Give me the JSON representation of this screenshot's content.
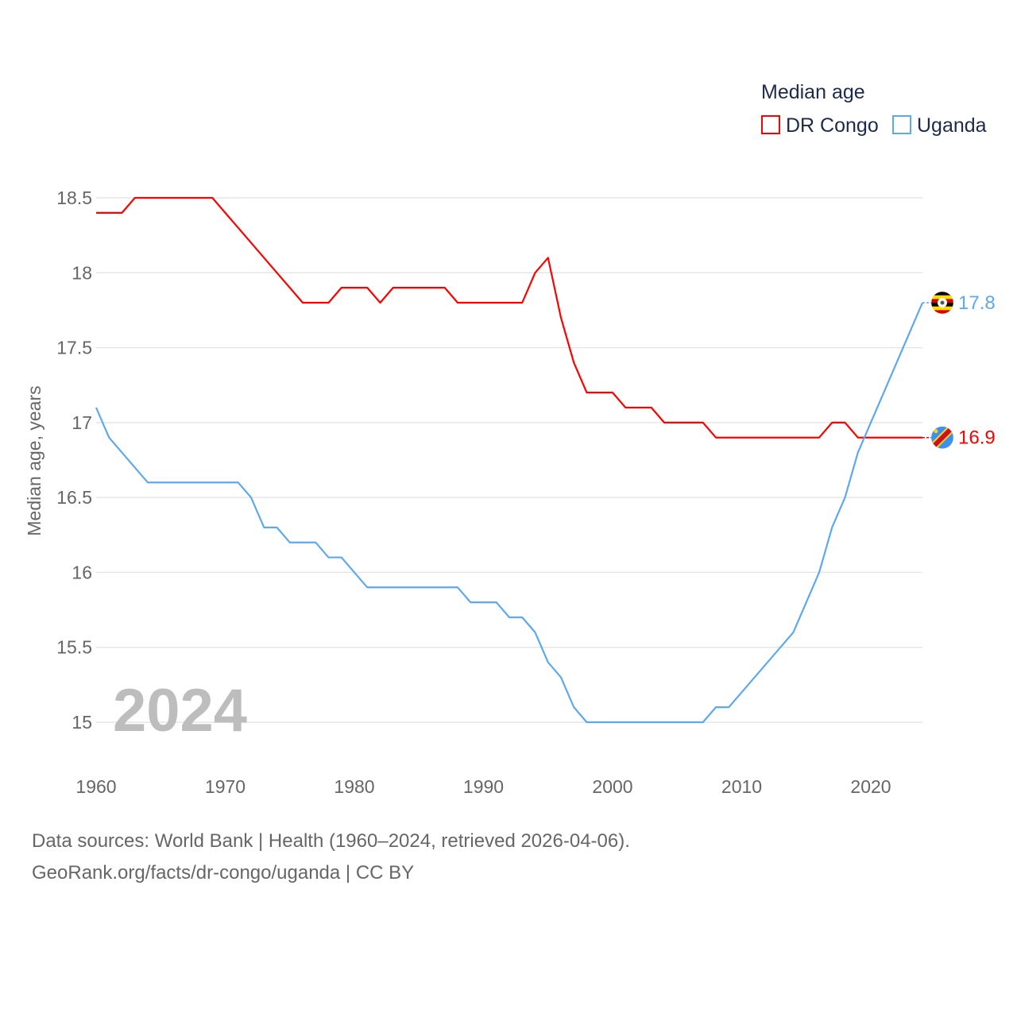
{
  "chart_data": {
    "type": "line",
    "title": "",
    "legend_title": "Median age",
    "legend_position": "top-right",
    "xlabel": "",
    "ylabel": "Median age, years",
    "xlim": [
      1960,
      2024
    ],
    "ylim": [
      15,
      18.5
    ],
    "grid": true,
    "x_ticks": [
      "1960",
      "1970",
      "1980",
      "1990",
      "2000",
      "2010",
      "2020"
    ],
    "y_ticks": [
      "15",
      "15.5",
      "16",
      "16.5",
      "17",
      "17.5",
      "18",
      "18.5"
    ],
    "year_label": "2024",
    "x": [
      1960,
      1961,
      1962,
      1963,
      1964,
      1965,
      1966,
      1967,
      1968,
      1969,
      1970,
      1971,
      1972,
      1973,
      1974,
      1975,
      1976,
      1977,
      1978,
      1979,
      1980,
      1981,
      1982,
      1983,
      1984,
      1985,
      1986,
      1987,
      1988,
      1989,
      1990,
      1991,
      1992,
      1993,
      1994,
      1995,
      1996,
      1997,
      1998,
      1999,
      2000,
      2001,
      2002,
      2003,
      2004,
      2005,
      2006,
      2007,
      2008,
      2009,
      2010,
      2011,
      2012,
      2013,
      2014,
      2015,
      2016,
      2017,
      2018,
      2019,
      2020,
      2021,
      2022,
      2023,
      2024
    ],
    "series": [
      {
        "name": "DR Congo",
        "color": "#ff0000",
        "end_label": "16.9",
        "values": [
          18.4,
          18.4,
          18.4,
          18.5,
          18.5,
          18.5,
          18.5,
          18.5,
          18.5,
          18.5,
          18.4,
          18.3,
          18.2,
          18.1,
          18.0,
          17.9,
          17.8,
          17.8,
          17.8,
          17.9,
          17.9,
          17.9,
          17.8,
          17.9,
          17.9,
          17.9,
          17.9,
          17.9,
          17.8,
          17.8,
          17.8,
          17.8,
          17.8,
          17.8,
          18.0,
          18.1,
          17.7,
          17.4,
          17.2,
          17.2,
          17.2,
          17.1,
          17.1,
          17.1,
          17.0,
          17.0,
          17.0,
          17.0,
          16.9,
          16.9,
          16.9,
          16.9,
          16.9,
          16.9,
          16.9,
          16.9,
          16.9,
          17.0,
          17.0,
          16.9,
          16.9,
          16.9,
          16.9,
          16.9,
          16.9
        ]
      },
      {
        "name": "Uganda",
        "color": "#5ea8ef",
        "end_label": "17.8",
        "values": [
          17.1,
          16.9,
          16.8,
          16.7,
          16.6,
          16.6,
          16.6,
          16.6,
          16.6,
          16.6,
          16.6,
          16.6,
          16.5,
          16.3,
          16.3,
          16.2,
          16.2,
          16.2,
          16.1,
          16.1,
          16.0,
          15.9,
          15.9,
          15.9,
          15.9,
          15.9,
          15.9,
          15.9,
          15.9,
          15.8,
          15.8,
          15.8,
          15.7,
          15.7,
          15.6,
          15.4,
          15.3,
          15.1,
          15.0,
          15.0,
          15.0,
          15.0,
          15.0,
          15.0,
          15.0,
          15.0,
          15.0,
          15.0,
          15.1,
          15.1,
          15.2,
          15.3,
          15.4,
          15.5,
          15.6,
          15.8,
          16.0,
          16.3,
          16.5,
          16.8,
          17.0,
          17.2,
          17.4,
          17.6,
          17.8
        ]
      }
    ]
  },
  "footer": {
    "line1": "Data sources: World Bank | Health (1960–2024, retrieved 2026-04-06).",
    "line2": "GeoRank.org/facts/dr-congo/uganda | CC BY"
  }
}
